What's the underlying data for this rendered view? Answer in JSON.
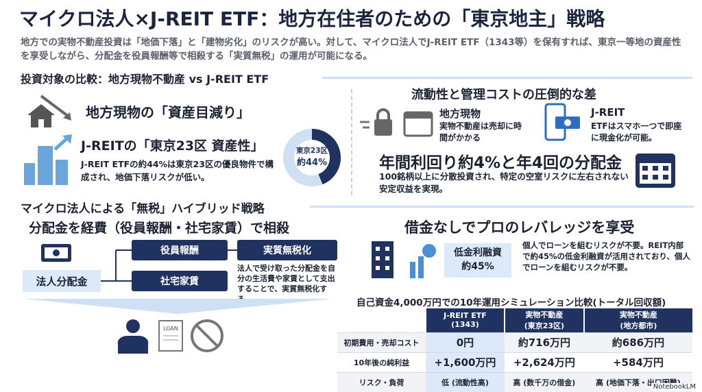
{
  "header": {
    "title": "マイクロ法人×J-REIT ETF：地方在住者のための「東京地主」戦略",
    "subtitle": "地方での実物不動産投資は「地価下落」と「建物劣化」のリスクが高い。対して、マイクロ法人でJ-REIT ETF（1343等）を保有すれば、東京一等地の資産性を享受しながら、分配金を役員報酬等で相殺する「実質無税」の運用が可能になる。"
  },
  "comparison": {
    "heading": "投資対象の比較：地方現物不動産 vs J-REIT ETF",
    "local": {
      "title": "地方現物の「資産目減り」"
    },
    "reit": {
      "title": "J-REITの「東京23区 資産性」",
      "text": "J-REIT ETFの約44%は東京23区の優良物件で構成され、地価下落リスクが低い。"
    },
    "donut": {
      "label": "東京23区",
      "value": 44,
      "value_label": "約44%"
    }
  },
  "liquidity": {
    "heading": "流動性と管理コストの圧倒的な差",
    "local": {
      "title": "地方現物",
      "text": "実物不動産は売却に時間がかかる"
    },
    "reit": {
      "title": "J-REIT",
      "text": "ETFはスマホ一つで即座に現金化が可能。"
    },
    "yield": {
      "title": "年間利回り約4%と年4回の分配金",
      "text": "100銘柄以上に分散投資され、特定の空室リスクに左右されない安定収益を実現。"
    }
  },
  "strategy": {
    "heading": "マイクロ法人による「無税」ハイブリッド戦略",
    "subheading": "分配金を経費（役員報酬・社宅家賃）で相殺",
    "source": "法人分配金",
    "branches": [
      "役員報酬",
      "社宅家賃"
    ],
    "result": "実質無税化",
    "note": "法人で受け取った分配金を自分の生活費や家賃として支出することで、実質無税化する。",
    "loan_icon": "LOAN"
  },
  "leverage": {
    "heading": "借金なしでプロのレバレッジを享受",
    "badge": [
      "低金利融資",
      "約45%"
    ],
    "text": "個人でローンを組むリスクが不要。REIT内部で約45%の低金利融資が活用されており、個人でローンを組むリスクが不要。"
  },
  "table": {
    "title": "自己資金4,000万円での10年運用シミュレーション比較(トータル回収額)",
    "columns": [
      [
        "J-REIT ETF",
        "(1343)"
      ],
      [
        "実物不動産",
        "(東京23区)"
      ],
      [
        "実物不動産",
        "(地方都市)"
      ]
    ],
    "rows": [
      [
        "初期費用・売却コスト",
        "0円",
        "約716万円",
        "約686万円"
      ],
      [
        "10年後の純利益",
        "+1,600万円",
        "+2,624万円",
        "+584万円"
      ],
      [
        "リスク・負荷",
        "低 (流動性高)",
        "高 (数千万の借金)",
        "高 (地価下落・出口困難)"
      ]
    ]
  },
  "footer": {
    "brand": "NotebookLM"
  }
}
